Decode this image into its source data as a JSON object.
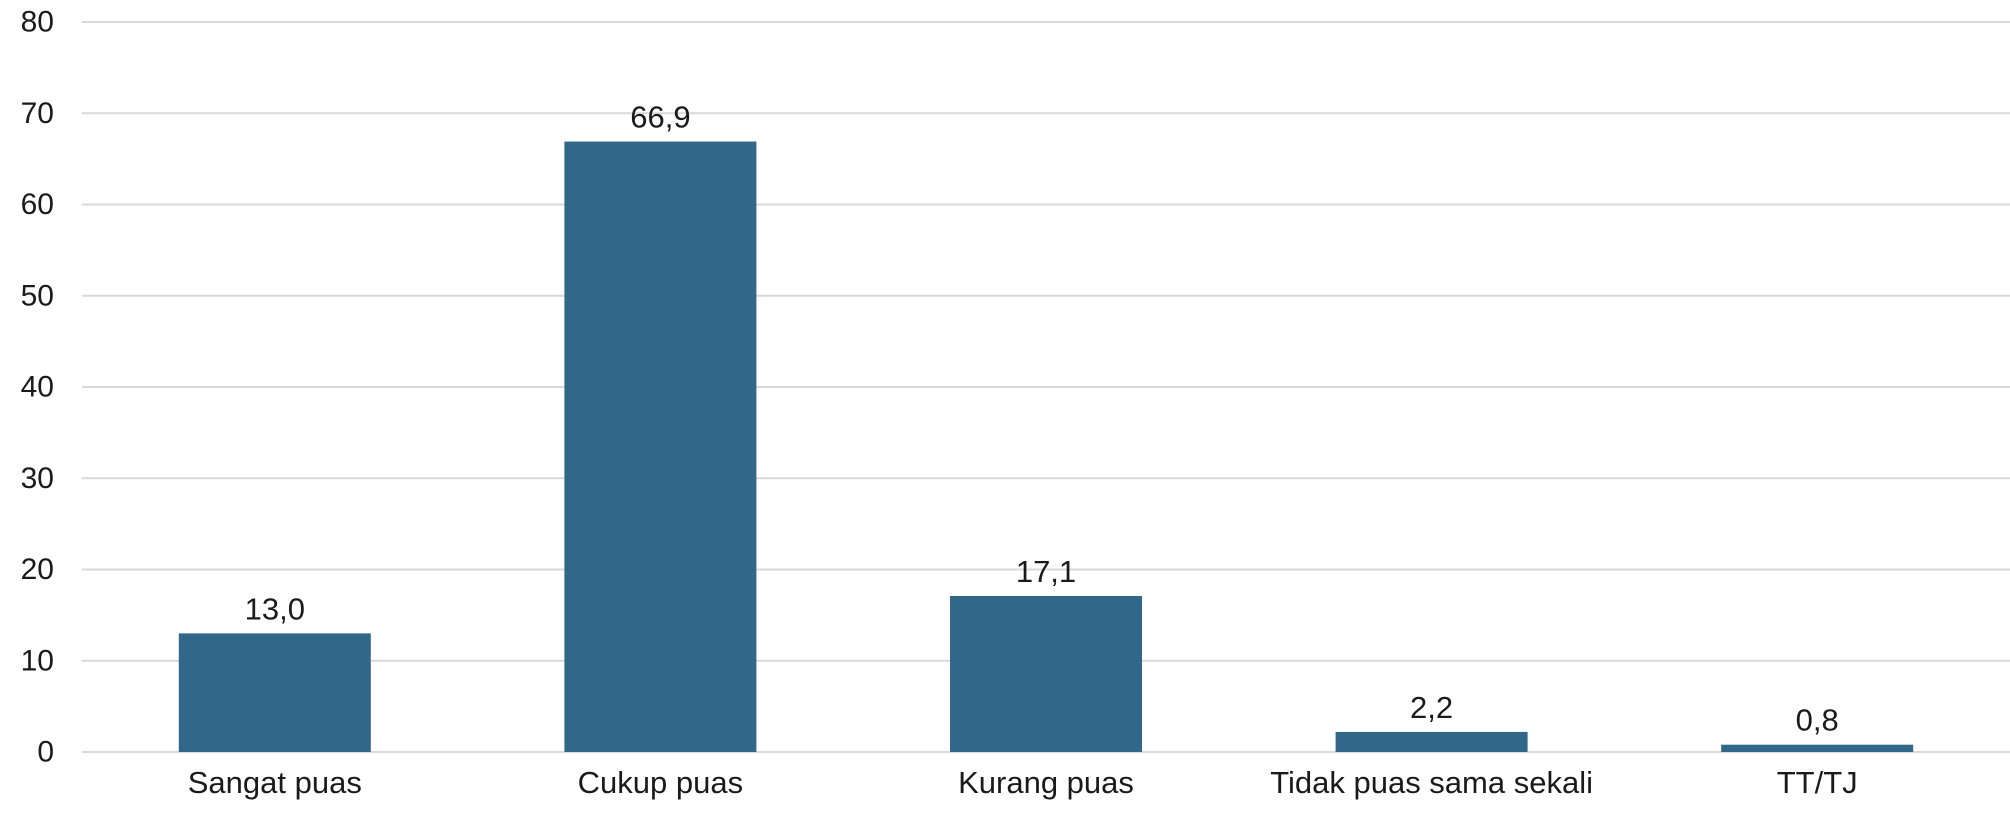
{
  "chart_data": {
    "type": "bar",
    "title": "",
    "xlabel": "",
    "ylabel": "",
    "categories": [
      "Sangat puas",
      "Cukup puas",
      "Kurang puas",
      "Tidak puas sama sekali",
      "TT/TJ"
    ],
    "values": [
      13.0,
      66.9,
      17.1,
      2.2,
      0.8
    ],
    "data_labels": [
      "13,0",
      "66,9",
      "17,1",
      "2,2",
      "0,8"
    ],
    "ylim": [
      0,
      80
    ],
    "yticks": [
      "0",
      "10",
      "20",
      "30",
      "40",
      "50",
      "60",
      "70",
      "80"
    ],
    "grid": true,
    "legend": "none",
    "bar_color": "#31688a"
  }
}
